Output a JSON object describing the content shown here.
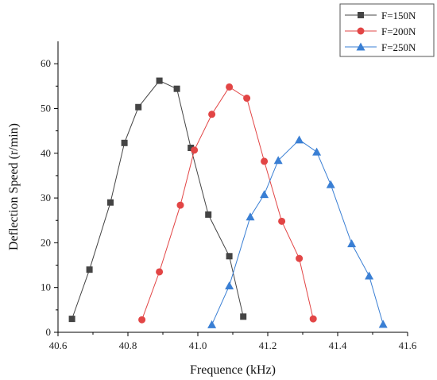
{
  "chart_data": {
    "type": "line",
    "xlabel": "Frequence (kHz)",
    "ylabel": "Deflection Speed (r/min)",
    "xlim": [
      40.6,
      41.6
    ],
    "ylim": [
      0,
      65
    ],
    "x_ticks": [
      "40.6",
      "40.8",
      "41.0",
      "41.2",
      "41.4",
      "41.6"
    ],
    "y_ticks": [
      "0",
      "10",
      "20",
      "30",
      "40",
      "50",
      "60"
    ],
    "grid": false,
    "legend_position": "top-right",
    "series": [
      {
        "name": "F=150N",
        "color": "#444444",
        "marker": "square",
        "x": [
          40.64,
          40.69,
          40.75,
          40.79,
          40.83,
          40.89,
          40.94,
          40.98,
          41.03,
          41.09,
          41.13
        ],
        "y": [
          3,
          14,
          29,
          42.3,
          50.3,
          56.2,
          54.4,
          41.2,
          26.3,
          17,
          3.5
        ]
      },
      {
        "name": "F=200N",
        "color": "#e24545",
        "marker": "circle",
        "x": [
          40.84,
          40.89,
          40.95,
          40.99,
          41.04,
          41.09,
          41.14,
          41.19,
          41.24,
          41.29,
          41.33
        ],
        "y": [
          2.8,
          13.5,
          28.4,
          40.7,
          48.7,
          54.8,
          52.3,
          38.2,
          24.8,
          16.5,
          3
        ],
        "y_note": ""
      },
      {
        "name": "F=250N",
        "color": "#3a7fd4",
        "marker": "triangle",
        "x": [
          41.04,
          41.09,
          41.15,
          41.19,
          41.23,
          41.29,
          41.34,
          41.38,
          41.44,
          41.49,
          41.53
        ],
        "y": [
          1.7,
          10.4,
          25.8,
          30.8,
          38.4,
          43,
          40.3,
          33,
          19.8,
          12.6,
          1.8
        ]
      }
    ]
  }
}
